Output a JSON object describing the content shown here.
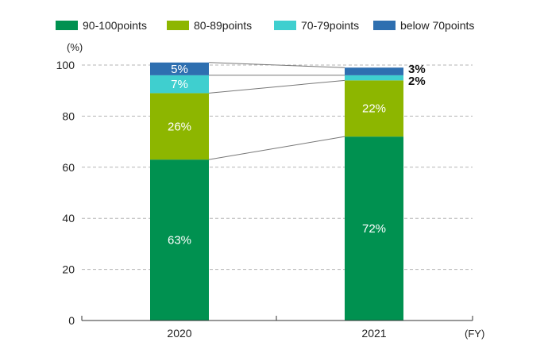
{
  "chart_data": {
    "type": "bar",
    "stacked": true,
    "categories": [
      "2020",
      "2021"
    ],
    "series": [
      {
        "name": "90-100points",
        "color": "#009150",
        "values": [
          63,
          72
        ],
        "labels": [
          "63%",
          "72%"
        ]
      },
      {
        "name": "80-89points",
        "color": "#8db600",
        "values": [
          26,
          22
        ],
        "labels": [
          "26%",
          "22%"
        ]
      },
      {
        "name": "70-79points",
        "color": "#3fcfcf",
        "values": [
          7,
          2
        ],
        "labels": [
          "7%",
          "2%"
        ]
      },
      {
        "name": "below 70points",
        "color": "#2e6fb0",
        "values": [
          5,
          3
        ],
        "labels": [
          "5%",
          "3%"
        ]
      }
    ],
    "ylim": [
      0,
      100
    ],
    "yticks": [
      "0",
      "20",
      "40",
      "60",
      "80",
      "100"
    ],
    "y_unit": "(%)",
    "x_unit": "(FY)",
    "grid": true,
    "legend_position": "top",
    "connector_lines": true
  }
}
